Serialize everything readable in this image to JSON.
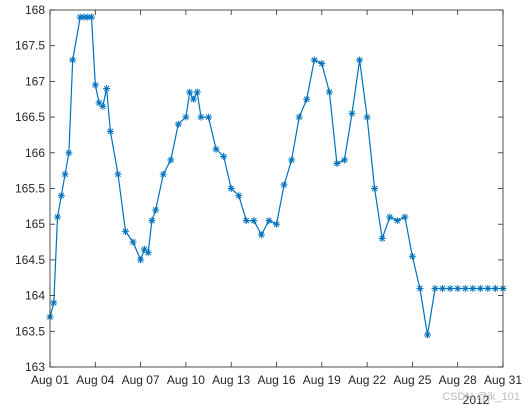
{
  "chart_data": {
    "type": "line",
    "marker": "asterisk",
    "line_color": "#0072BD",
    "x_tick_labels": [
      "Aug 01",
      "Aug 04",
      "Aug 07",
      "Aug 10",
      "Aug 13",
      "Aug 16",
      "Aug 19",
      "Aug 22",
      "Aug 25",
      "Aug 28",
      "Aug 31"
    ],
    "x_tick_days": [
      1,
      4,
      7,
      10,
      13,
      16,
      19,
      22,
      25,
      28,
      31
    ],
    "x_secondary_label": "2012",
    "y_ticks": [
      163,
      163.5,
      164,
      164.5,
      165,
      165.5,
      166,
      166.5,
      167,
      167.5,
      168
    ],
    "y_tick_labels": [
      "163",
      "163.5",
      "164",
      "164.5",
      "165",
      "165.5",
      "166",
      "166.5",
      "167",
      "167.5",
      "168"
    ],
    "xlim_days": [
      1,
      31
    ],
    "ylim": [
      163,
      168
    ],
    "grid": false,
    "box": true,
    "series": [
      {
        "x_days": [
          1,
          1.25,
          1.5,
          1.75,
          2,
          2.25,
          2.5,
          3,
          3.25,
          3.5,
          3.75,
          4,
          4.25,
          4.5,
          4.75,
          5,
          5.5,
          6,
          6.5,
          7,
          7.25,
          7.5,
          7.75,
          8,
          8.5,
          9,
          9.5,
          10,
          10.25,
          10.5,
          10.75,
          11,
          11.5,
          12,
          12.5,
          13,
          13.5,
          14,
          14.5,
          15,
          15.5,
          16,
          16.5,
          17,
          17.5,
          18,
          18.5,
          19,
          19.5,
          20,
          20.5,
          21,
          21.5,
          22,
          22.5,
          23,
          23.5,
          24,
          24.5,
          25,
          25.5,
          26,
          26.5,
          27,
          27.5,
          28,
          28.5,
          29,
          29.5,
          30,
          30.5,
          31
        ],
        "values": [
          163.7,
          163.9,
          165.1,
          165.4,
          165.7,
          166.0,
          167.3,
          167.9,
          167.9,
          167.9,
          167.9,
          166.95,
          166.7,
          166.65,
          166.9,
          166.3,
          165.7,
          164.9,
          164.75,
          164.5,
          164.65,
          164.6,
          165.05,
          165.2,
          165.7,
          165.9,
          166.4,
          166.5,
          166.85,
          166.75,
          166.85,
          166.5,
          166.5,
          166.05,
          165.95,
          165.5,
          165.4,
          165.05,
          165.05,
          164.85,
          165.05,
          165.0,
          165.55,
          165.9,
          166.5,
          166.75,
          167.3,
          167.25,
          166.85,
          165.85,
          165.9,
          166.55,
          167.3,
          166.5,
          165.5,
          164.8,
          165.1,
          165.05,
          165.1,
          164.55,
          164.1,
          163.45,
          164.1,
          164.1,
          164.1,
          164.1,
          164.1,
          164.1,
          164.1,
          164.1,
          164.1,
          164.1
        ]
      }
    ]
  },
  "watermark": "CSDN @jk_101"
}
